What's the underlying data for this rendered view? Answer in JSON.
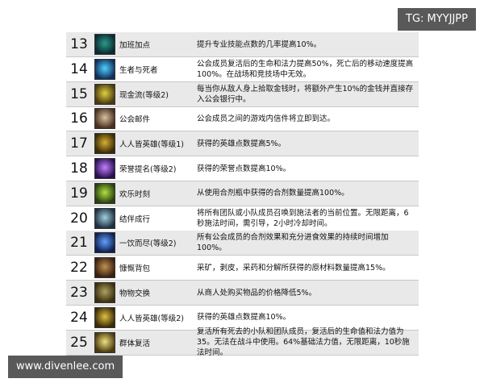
{
  "watermarks": {
    "top": "TG: MYYJJPP",
    "bottom": "www.divenlee.com"
  },
  "table": {
    "rows": [
      [
        13,
        "加班加点",
        "提升专业技能点数的几率提高10%。"
      ],
      [
        14,
        "生者与死者",
        "公会成员复活后的生命和法力提高50%，死亡后的移动速度提高100%。在战场和竞技场中无效。"
      ],
      [
        15,
        "现金流(等级2)",
        "每当你从敌人身上拾取金钱时，将额外产生10%的金钱并直接存入公会银行中。"
      ],
      [
        16,
        "公会邮件",
        "公会成员之间的游戏内信件将立即到达。"
      ],
      [
        17,
        "人人皆英雄(等级1)",
        "获得的英雄点数提高5%。"
      ],
      [
        18,
        "荣誉提名(等级2)",
        "获得的荣誉点数提高10%。"
      ],
      [
        19,
        "欢乐时刻",
        "从使用合剂瓶中获得的合剂数量提高100%。"
      ],
      [
        20,
        "结伴成行",
        "将所有团队或小队成员召唤到施法者的当前位置。无限距离，6秒施法时间，需引导，2小时冷却时间。"
      ],
      [
        21,
        "一饮而尽(等级2)",
        "所有公会成员的合剂效果和充分进食效果的持续时间增加100%。"
      ],
      [
        22,
        "慷慨背包",
        "采矿，剥皮，采药和分解所获得的原材料数量提高15%。"
      ],
      [
        23,
        "物物交换",
        "从商人处购买物品的价格降低5%。"
      ],
      [
        24,
        "人人皆英雄(等级2)",
        "获得的英雄点数提高10%。"
      ],
      [
        25,
        "群体复活",
        "复活所有死去的小队和团队成员，复活后的生命值和法力值为35。无法在战斗中使用。64%基础法力值，无限距离，10秒施法时间。"
      ]
    ]
  }
}
